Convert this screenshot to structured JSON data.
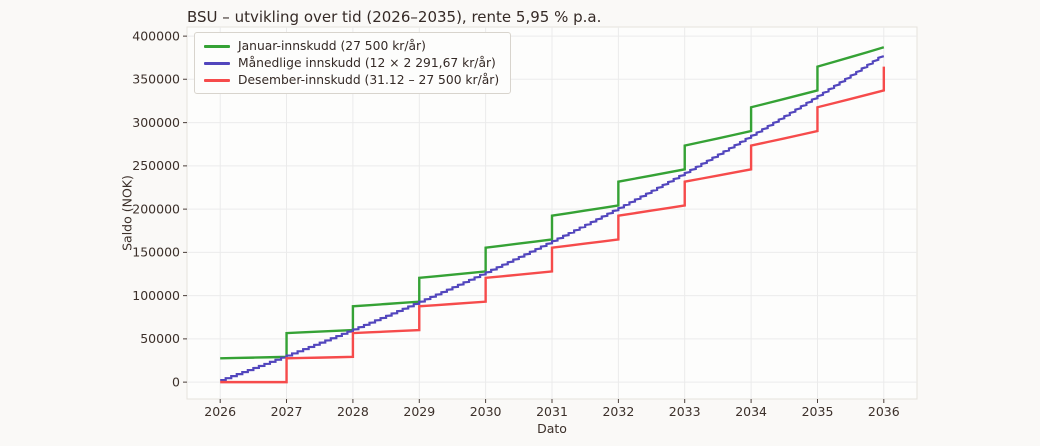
{
  "figure": {
    "background": "#faf9f7",
    "axes_background": "#fdfdfc",
    "grid_color": "#ebebeb",
    "axes_border_color": "#e5e2dd",
    "tick_color": "#4a3f3a",
    "text_color": "#352a26"
  },
  "chart_data": {
    "type": "line",
    "title": "BSU – utvikling over tid (2026–2035), rente 5,95 % p.a.",
    "xlabel": "Dato",
    "ylabel": "Saldo (NOK)",
    "interest_rate_pct_pa": 5.95,
    "grid": true,
    "legend_position": "upper left",
    "xlim": [
      2025.5,
      2036.5
    ],
    "ylim": [
      -19500,
      410500
    ],
    "x_ticks": [
      2026,
      2027,
      2028,
      2029,
      2030,
      2031,
      2032,
      2033,
      2034,
      2035,
      2036
    ],
    "y_ticks": [
      0,
      50000,
      100000,
      150000,
      200000,
      250000,
      300000,
      350000,
      400000
    ],
    "series": [
      {
        "name": "Januar-innskudd (27 500 kr/år)",
        "color": "#35a235",
        "line_width": 2.4,
        "annual_deposit": 27500,
        "points": [
          [
            2026.0,
            27500
          ],
          [
            2026.25,
            27912
          ],
          [
            2026.5,
            28330
          ],
          [
            2026.75,
            28755
          ],
          [
            2027.0,
            29186
          ],
          [
            2027.0,
            56686
          ],
          [
            2027.25,
            57536
          ],
          [
            2027.5,
            58398
          ],
          [
            2027.75,
            59273
          ],
          [
            2028.0,
            60161
          ],
          [
            2028.0,
            87661
          ],
          [
            2028.25,
            88975
          ],
          [
            2028.5,
            90308
          ],
          [
            2028.75,
            91662
          ],
          [
            2029.0,
            93035
          ],
          [
            2029.0,
            120536
          ],
          [
            2029.25,
            122343
          ],
          [
            2029.5,
            124176
          ],
          [
            2029.75,
            126037
          ],
          [
            2030.0,
            127926
          ],
          [
            2030.0,
            155426
          ],
          [
            2030.25,
            157755
          ],
          [
            2030.5,
            160119
          ],
          [
            2030.75,
            162519
          ],
          [
            2031.0,
            164955
          ],
          [
            2031.0,
            192455
          ],
          [
            2031.25,
            195339
          ],
          [
            2031.5,
            198267
          ],
          [
            2031.75,
            201239
          ],
          [
            2032.0,
            204254
          ],
          [
            2032.0,
            231754
          ],
          [
            2032.25,
            235227
          ],
          [
            2032.5,
            238753
          ],
          [
            2032.75,
            242331
          ],
          [
            2033.0,
            245963
          ],
          [
            2033.0,
            273463
          ],
          [
            2033.25,
            277561
          ],
          [
            2033.5,
            281721
          ],
          [
            2033.75,
            285943
          ],
          [
            2034.0,
            290228
          ],
          [
            2034.0,
            317728
          ],
          [
            2034.25,
            322489
          ],
          [
            2034.5,
            327323
          ],
          [
            2034.75,
            332230
          ],
          [
            2035.0,
            337208
          ],
          [
            2035.0,
            364708
          ],
          [
            2035.25,
            370174
          ],
          [
            2035.5,
            375721
          ],
          [
            2035.75,
            381352
          ],
          [
            2036.0,
            387069
          ]
        ]
      },
      {
        "name": "Månedlige innskudd (12 × 2 291,67 kr/år)",
        "color": "#5246bd",
        "line_width": 2.2,
        "monthly_deposit": 2291.67,
        "x_start": 2026,
        "months_per_year": 12,
        "values_after_deposit": [
          2292,
          4595,
          6909,
          9235,
          11573,
          13922,
          16283,
          18656,
          21040,
          23436,
          25844,
          28265,
          30697,
          33142,
          35599,
          38067,
          40547,
          43040,
          45546,
          48064,
          50594,
          53137,
          55693,
          58263,
          60845,
          63438,
          66046,
          68667,
          71300,
          73946,
          76605,
          79278,
          81964,
          84663,
          87375,
          90100,
          92838,
          95591,
          98359,
          101139,
          103934,
          106743,
          109565,
          112401,
          115251,
          118116,
          120995,
          123887,
          126794,
          129716,
          132653,
          135604,
          138570,
          141551,
          144547,
          147557,
          150583,
          153623,
          156679,
          159748,
          162835,
          165936,
          169053,
          172185,
          175333,
          178497,
          181676,
          184871,
          188082,
          191308,
          194551,
          197808,
          201083,
          204374,
          207682,
          211005,
          214346,
          217704,
          221078,
          224468,
          227876,
          231300,
          234741,
          238199,
          241675,
          245168,
          248678,
          252206,
          255752,
          259315,
          262896,
          266494,
          270111,
          273745,
          277398,
          281068,
          284757,
          288464,
          292190,
          295933,
          299697,
          303479,
          307280,
          311098,
          314936,
          318793,
          322669,
          326564,
          330478,
          334412,
          338366,
          342339,
          346334,
          350348,
          354381,
          358435,
          362508,
          366602,
          370716,
          374848,
          376711
        ]
      },
      {
        "name": "Desember-innskudd (31.12 – 27 500 kr/år)",
        "color": "#f64b4b",
        "line_width": 2.4,
        "annual_deposit": 27500,
        "points": [
          [
            2026.0,
            0
          ],
          [
            2027.0,
            0
          ],
          [
            2027.0,
            27500
          ],
          [
            2027.25,
            27912
          ],
          [
            2027.5,
            28330
          ],
          [
            2027.75,
            28755
          ],
          [
            2028.0,
            29186
          ],
          [
            2028.0,
            56686
          ],
          [
            2028.25,
            57536
          ],
          [
            2028.5,
            58398
          ],
          [
            2028.75,
            59273
          ],
          [
            2029.0,
            60161
          ],
          [
            2029.0,
            87661
          ],
          [
            2029.25,
            88975
          ],
          [
            2029.5,
            90308
          ],
          [
            2029.75,
            91662
          ],
          [
            2030.0,
            93035
          ],
          [
            2030.0,
            120536
          ],
          [
            2030.25,
            122343
          ],
          [
            2030.5,
            124176
          ],
          [
            2030.75,
            126037
          ],
          [
            2031.0,
            127926
          ],
          [
            2031.0,
            155426
          ],
          [
            2031.25,
            157755
          ],
          [
            2031.5,
            160119
          ],
          [
            2031.75,
            162519
          ],
          [
            2032.0,
            164955
          ],
          [
            2032.0,
            192455
          ],
          [
            2032.25,
            195339
          ],
          [
            2032.5,
            198267
          ],
          [
            2032.75,
            201239
          ],
          [
            2033.0,
            204254
          ],
          [
            2033.0,
            231754
          ],
          [
            2033.25,
            235227
          ],
          [
            2033.5,
            238753
          ],
          [
            2033.75,
            242331
          ],
          [
            2034.0,
            245963
          ],
          [
            2034.0,
            273463
          ],
          [
            2034.25,
            277561
          ],
          [
            2034.5,
            281721
          ],
          [
            2034.75,
            285943
          ],
          [
            2035.0,
            290228
          ],
          [
            2035.0,
            317728
          ],
          [
            2035.25,
            322489
          ],
          [
            2035.5,
            327323
          ],
          [
            2035.75,
            332230
          ],
          [
            2036.0,
            337206
          ],
          [
            2036.0,
            364708
          ]
        ]
      }
    ]
  }
}
